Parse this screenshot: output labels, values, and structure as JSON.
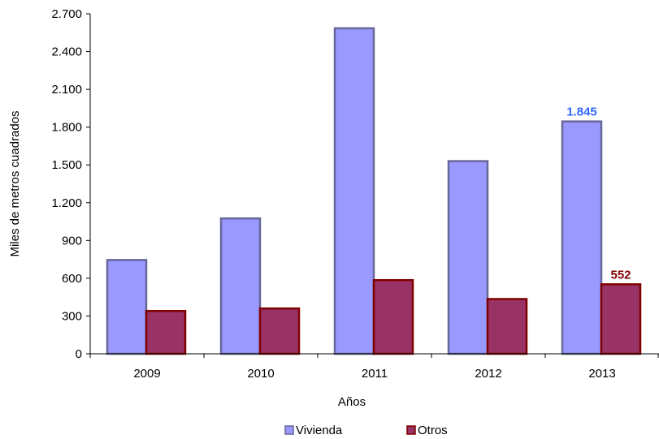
{
  "chart_data": {
    "type": "bar",
    "categories": [
      "2009",
      "2010",
      "2011",
      "2012",
      "2013"
    ],
    "series": [
      {
        "name": "Vivienda",
        "values": [
          745,
          1075,
          2585,
          1530,
          1845
        ],
        "color": "#9999ff",
        "border": "#666699"
      },
      {
        "name": "Otros",
        "values": [
          340,
          360,
          585,
          435,
          552
        ],
        "color": "#993366",
        "border": "#800000"
      }
    ],
    "data_labels": [
      {
        "series": 0,
        "index": 4,
        "text": "1.845",
        "color": "#3366ff"
      },
      {
        "series": 1,
        "index": 4,
        "text": "552",
        "color": "#800000"
      }
    ],
    "xlabel": "Años",
    "ylabel": "Miles de metros cuadrados",
    "ylim": [
      0,
      2700
    ],
    "yticks": [
      0,
      300,
      600,
      900,
      1200,
      1500,
      1800,
      2100,
      2400,
      2700
    ],
    "ytick_labels": [
      "0",
      "300",
      "600",
      "900",
      "1.200",
      "1.500",
      "1.800",
      "2.100",
      "2.400",
      "2.700"
    ],
    "grid": false,
    "legend_position": "bottom"
  }
}
